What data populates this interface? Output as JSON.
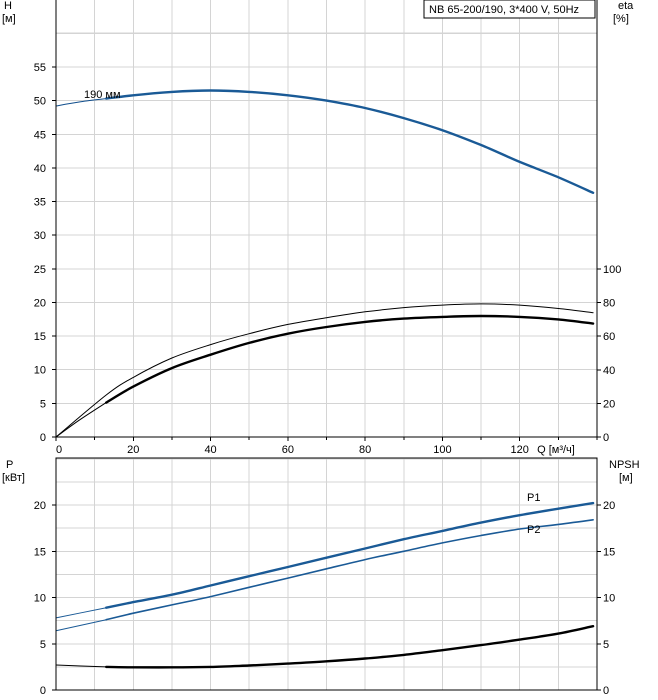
{
  "title": "NB 65-200/190, 3*400 V, 50Hz",
  "chart_data": [
    {
      "type": "line",
      "panel": "upper",
      "xlabel": "Q [м³/ч]",
      "ylabel_left": "H",
      "ylabel_left_unit": "[м]",
      "ylabel_right": "eta",
      "ylabel_right_unit": "[%]",
      "xlim": [
        0,
        140
      ],
      "ylim_left": [
        0,
        60
      ],
      "ylim_right": [
        0,
        100
      ],
      "x_ticks": [
        0,
        20,
        40,
        60,
        80,
        100,
        120
      ],
      "y_ticks_left": [
        0,
        5,
        10,
        15,
        20,
        25,
        30,
        35,
        40,
        45,
        50,
        55
      ],
      "y_ticks_right": [
        0,
        20,
        40,
        60,
        80,
        100
      ],
      "annotation": "190 мм",
      "grid": true,
      "series": [
        {
          "axis": "left",
          "color": "#0f4d8c",
          "style": "thin",
          "x": [
            0,
            6,
            13
          ],
          "y": [
            49.2,
            49.8,
            50.3
          ]
        },
        {
          "axis": "left",
          "color": "#1a5a96",
          "style": "thick",
          "x": [
            13,
            20,
            30,
            40,
            50,
            60,
            70,
            80,
            90,
            100,
            110,
            120,
            130,
            139
          ],
          "y": [
            50.3,
            50.8,
            51.3,
            51.5,
            51.3,
            50.8,
            50.0,
            48.9,
            47.4,
            45.6,
            43.4,
            40.9,
            38.6,
            36.3
          ]
        },
        {
          "axis": "right",
          "color": "#000000",
          "style": "thin",
          "x": [
            0,
            13,
            20,
            30,
            40,
            50,
            60,
            70,
            80,
            90,
            100,
            110,
            120,
            130,
            139
          ],
          "y": [
            0,
            25,
            35.5,
            47,
            55,
            61.5,
            67,
            71,
            74.5,
            77,
            78.5,
            79.2,
            78.5,
            76.5,
            74
          ]
        },
        {
          "axis": "right",
          "color": "#000000",
          "style": "thick",
          "x": [
            13,
            20,
            30,
            40,
            50,
            60,
            70,
            80,
            90,
            100,
            110,
            120,
            130,
            139
          ],
          "y": [
            20.5,
            30,
            41,
            49,
            56,
            61.5,
            65.5,
            68.5,
            70.5,
            71.5,
            72,
            71.5,
            70,
            67.5
          ]
        },
        {
          "axis": "right",
          "color": "#000000",
          "style": "thin",
          "x": [
            0,
            6,
            13
          ],
          "y": [
            0,
            10,
            20.5
          ]
        }
      ]
    },
    {
      "type": "line",
      "panel": "lower",
      "ylabel_left": "P",
      "ylabel_left_unit": "[кВт]",
      "ylabel_right": "NPSH",
      "ylabel_right_unit": "[м]",
      "xlim": [
        0,
        140
      ],
      "ylim_left": [
        0,
        25
      ],
      "ylim_right": [
        0,
        25
      ],
      "y_ticks_left": [
        0,
        5,
        10,
        15,
        20
      ],
      "y_ticks_right": [
        0,
        5,
        10,
        15,
        20
      ],
      "grid": true,
      "series": [
        {
          "name": "P1",
          "axis": "left",
          "color": "#1a5a96",
          "style": "thick",
          "x": [
            13,
            20,
            30,
            40,
            50,
            60,
            70,
            80,
            90,
            100,
            110,
            120,
            130,
            139
          ],
          "y": [
            8.9,
            9.5,
            10.3,
            11.3,
            12.3,
            13.3,
            14.3,
            15.3,
            16.3,
            17.2,
            18.1,
            18.9,
            19.6,
            20.2
          ]
        },
        {
          "name": "P2",
          "axis": "left",
          "color": "#1a5a96",
          "style": "medium",
          "x": [
            13,
            20,
            30,
            40,
            50,
            60,
            70,
            80,
            90,
            100,
            110,
            120,
            130,
            139
          ],
          "y": [
            7.6,
            8.3,
            9.2,
            10.1,
            11.1,
            12.1,
            13.1,
            14.1,
            15.0,
            15.9,
            16.7,
            17.4,
            17.9,
            18.4
          ]
        },
        {
          "axis": "left",
          "color": "#1a5a96",
          "style": "thin",
          "x": [
            0,
            13
          ],
          "y": [
            7.8,
            8.9
          ]
        },
        {
          "axis": "left",
          "color": "#1a5a96",
          "style": "thin",
          "x": [
            0,
            13
          ],
          "y": [
            6.4,
            7.6
          ]
        },
        {
          "axis": "right",
          "color": "#000000",
          "style": "thin",
          "x": [
            0,
            13
          ],
          "y": [
            2.7,
            2.5
          ]
        },
        {
          "axis": "right",
          "color": "#000000",
          "style": "thick",
          "x": [
            13,
            20,
            30,
            40,
            50,
            60,
            70,
            80,
            90,
            100,
            110,
            120,
            130,
            139
          ],
          "y": [
            2.5,
            2.45,
            2.45,
            2.5,
            2.65,
            2.85,
            3.1,
            3.4,
            3.8,
            4.3,
            4.85,
            5.45,
            6.1,
            6.9
          ]
        }
      ]
    }
  ]
}
